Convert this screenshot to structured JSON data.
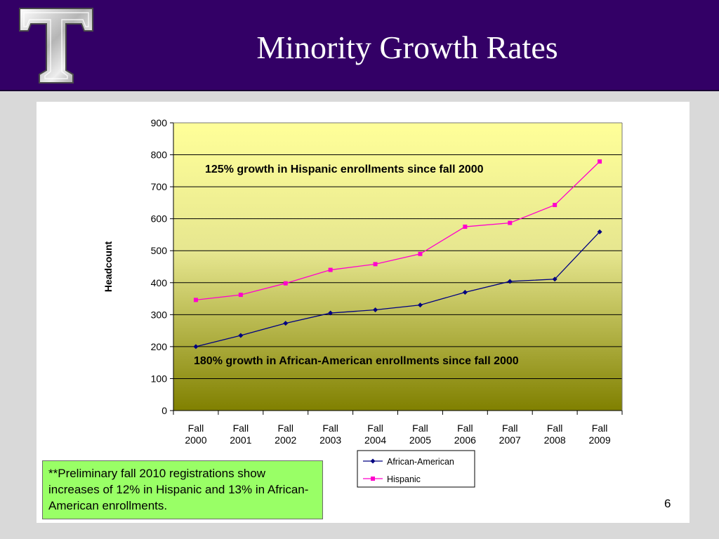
{
  "slide": {
    "title": "Minority Growth Rates",
    "page_number": "6",
    "note": "**Preliminary fall 2010 registrations show increases of 12% in Hispanic and 13% in African-American enrollments.",
    "colors": {
      "header_bg": "#330066",
      "note_bg": "#99ff66"
    }
  },
  "chart_data": {
    "type": "line",
    "title": "",
    "xlabel": "",
    "ylabel": "Headcount",
    "ylim": [
      0,
      900
    ],
    "yticks": [
      0,
      100,
      200,
      300,
      400,
      500,
      600,
      700,
      800,
      900
    ],
    "grid": true,
    "legend_position": "bottom",
    "categories": [
      [
        "Fall",
        "2000"
      ],
      [
        "Fall",
        "2001"
      ],
      [
        "Fall",
        "2002"
      ],
      [
        "Fall",
        "2003"
      ],
      [
        "Fall",
        "2004"
      ],
      [
        "Fall",
        "2005"
      ],
      [
        "Fall",
        "2006"
      ],
      [
        "Fall",
        "2007"
      ],
      [
        "Fall",
        "2008"
      ],
      [
        "Fall",
        "2009"
      ]
    ],
    "series": [
      {
        "name": "African-American",
        "color": "#000080",
        "marker": "diamond",
        "values": [
          200,
          235,
          273,
          305,
          315,
          330,
          370,
          404,
          411,
          559
        ]
      },
      {
        "name": "Hispanic",
        "color": "#ff00cc",
        "marker": "square",
        "values": [
          346,
          362,
          398,
          440,
          458,
          490,
          575,
          587,
          643,
          779
        ]
      }
    ],
    "annotations": [
      {
        "text": "125% growth in Hispanic enrollments since fall 2000"
      },
      {
        "text": "180% growth in African-American enrollments since fall 2000"
      }
    ]
  }
}
